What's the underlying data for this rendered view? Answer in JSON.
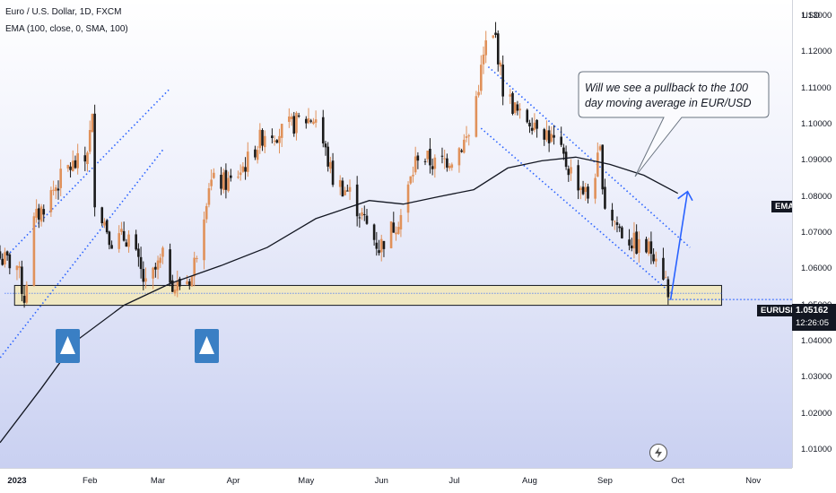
{
  "header": {
    "title": "Euro / U.S. Dollar, 1D, FXCM",
    "indicator": "EMA (100, close, 0, SMA, 100)"
  },
  "price_axis": {
    "currency": "USD",
    "ticks": [
      "1.13000",
      "1.12000",
      "1.11000",
      "1.10000",
      "1.09000",
      "1.08000",
      "1.07000",
      "1.06000",
      "1.05000",
      "1.04000",
      "1.03000",
      "1.02000",
      "1.01000"
    ],
    "ema_tag": "EMA",
    "symbol_tag": "EURUSD",
    "last_price": "1.05162",
    "countdown": "12:26:05"
  },
  "time_axis": {
    "ticks": [
      "2023",
      "Feb",
      "Mar",
      "Apr",
      "May",
      "Jun",
      "Jul",
      "Aug",
      "Sep",
      "Oct",
      "Nov"
    ]
  },
  "annotation": {
    "callout": "Will we see a pullback to the 100 day moving average in EUR/USD"
  },
  "icons": {
    "up_arrow": "up-arrow-icon",
    "flash": "lightning-icon"
  },
  "colors": {
    "up_candle": "#e0915a",
    "down_candle": "#1a1a1a",
    "ema_line": "#131722",
    "channel": "#2962ff",
    "support_zone": "#f3e9b8",
    "marker": "#3a7fc4"
  },
  "chart_data": {
    "type": "candlestick",
    "symbol": "EURUSD",
    "interval": "1D",
    "y_range": [
      1.005,
      1.1345
    ],
    "x_range": [
      "2022-12-26",
      "2023-11-17"
    ],
    "closes": [
      {
        "date": "2022-12-26",
        "close": 1.063
      },
      {
        "date": "2023-01-02",
        "close": 1.061
      },
      {
        "date": "2023-01-05",
        "close": 1.052
      },
      {
        "date": "2023-01-09",
        "close": 1.073
      },
      {
        "date": "2023-01-16",
        "close": 1.081
      },
      {
        "date": "2023-01-23",
        "close": 1.088
      },
      {
        "date": "2023-01-30",
        "close": 1.09
      },
      {
        "date": "2023-02-02",
        "close": 1.101
      },
      {
        "date": "2023-02-03",
        "close": 1.08
      },
      {
        "date": "2023-02-10",
        "close": 1.068
      },
      {
        "date": "2023-02-17",
        "close": 1.069
      },
      {
        "date": "2023-02-24",
        "close": 1.055
      },
      {
        "date": "2023-03-03",
        "close": 1.063
      },
      {
        "date": "2023-03-08",
        "close": 1.055
      },
      {
        "date": "2023-03-15",
        "close": 1.058
      },
      {
        "date": "2023-03-22",
        "close": 1.084
      },
      {
        "date": "2023-03-31",
        "close": 1.084
      },
      {
        "date": "2023-04-07",
        "close": 1.09
      },
      {
        "date": "2023-04-14",
        "close": 1.098
      },
      {
        "date": "2023-04-21",
        "close": 1.098
      },
      {
        "date": "2023-04-28",
        "close": 1.101
      },
      {
        "date": "2023-05-05",
        "close": 1.102
      },
      {
        "date": "2023-05-12",
        "close": 1.085
      },
      {
        "date": "2023-05-19",
        "close": 1.081
      },
      {
        "date": "2023-05-26",
        "close": 1.072
      },
      {
        "date": "2023-05-31",
        "close": 1.066
      },
      {
        "date": "2023-06-09",
        "close": 1.075
      },
      {
        "date": "2023-06-16",
        "close": 1.092
      },
      {
        "date": "2023-06-23",
        "close": 1.089
      },
      {
        "date": "2023-06-30",
        "close": 1.091
      },
      {
        "date": "2023-07-07",
        "close": 1.097
      },
      {
        "date": "2023-07-14",
        "close": 1.122
      },
      {
        "date": "2023-07-18",
        "close": 1.124
      },
      {
        "date": "2023-07-21",
        "close": 1.11
      },
      {
        "date": "2023-07-28",
        "close": 1.102
      },
      {
        "date": "2023-08-04",
        "close": 1.101
      },
      {
        "date": "2023-08-11",
        "close": 1.095
      },
      {
        "date": "2023-08-18",
        "close": 1.087
      },
      {
        "date": "2023-08-25",
        "close": 1.08
      },
      {
        "date": "2023-08-30",
        "close": 1.092
      },
      {
        "date": "2023-09-01",
        "close": 1.078
      },
      {
        "date": "2023-09-08",
        "close": 1.07
      },
      {
        "date": "2023-09-15",
        "close": 1.066
      },
      {
        "date": "2023-09-22",
        "close": 1.065
      },
      {
        "date": "2023-09-26",
        "close": 1.057
      },
      {
        "date": "2023-09-27",
        "close": 1.0516
      }
    ],
    "ema_100": [
      {
        "date": "2022-12-26",
        "value": 1.012
      },
      {
        "date": "2023-01-12",
        "value": 1.027
      },
      {
        "date": "2023-01-26",
        "value": 1.04
      },
      {
        "date": "2023-02-15",
        "value": 1.05
      },
      {
        "date": "2023-03-06",
        "value": 1.056
      },
      {
        "date": "2023-03-27",
        "value": 1.061
      },
      {
        "date": "2023-04-15",
        "value": 1.066
      },
      {
        "date": "2023-05-05",
        "value": 1.074
      },
      {
        "date": "2023-05-27",
        "value": 1.079
      },
      {
        "date": "2023-06-10",
        "value": 1.078
      },
      {
        "date": "2023-06-24",
        "value": 1.08
      },
      {
        "date": "2023-07-09",
        "value": 1.082
      },
      {
        "date": "2023-07-23",
        "value": 1.088
      },
      {
        "date": "2023-08-06",
        "value": 1.09
      },
      {
        "date": "2023-08-20",
        "value": 1.091
      },
      {
        "date": "2023-09-03",
        "value": 1.089
      },
      {
        "date": "2023-09-17",
        "value": 1.086
      },
      {
        "date": "2023-10-01",
        "value": 1.081
      }
    ],
    "support_zone": [
      1.05,
      1.0555
    ],
    "last_price_line": 1.05162
  }
}
